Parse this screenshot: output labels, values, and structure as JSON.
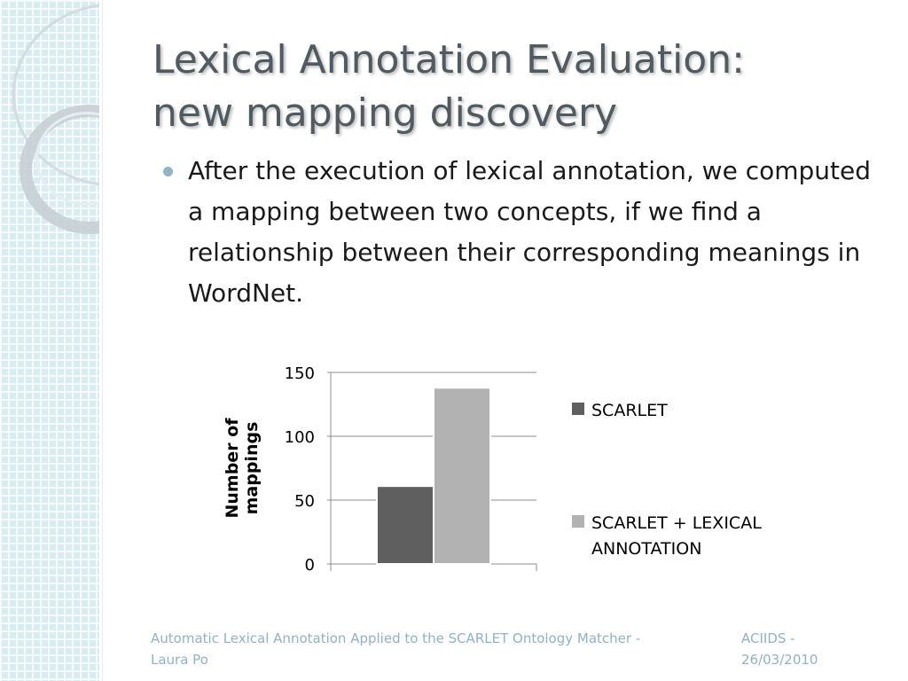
{
  "slide": {
    "title_line1": "Lexical Annotation Evaluation:",
    "title_line2": "new mapping discovery",
    "bullet": "After the execution of lexical annotation, we computed a mapping between two concepts, if we find a relationship between their corresponding meanings in WordNet."
  },
  "chart_data": {
    "type": "bar",
    "categories": [
      ""
    ],
    "series": [
      {
        "name": "SCARLET",
        "values": [
          61
        ],
        "color": "#5f5f5f"
      },
      {
        "name": "SCARLET + LEXICAL ANNOTATION",
        "values": [
          138
        ],
        "color": "#b2b2b2"
      }
    ],
    "ylabel_line1": "Number of",
    "ylabel_line2": "mappings",
    "ylim": [
      0,
      150
    ],
    "yticks": [
      0,
      50,
      100,
      150
    ],
    "grid": true,
    "legend_position": "right",
    "legend_labels": [
      "SCARLET",
      "SCARLET + LEXICAL",
      "ANNOTATION"
    ]
  },
  "footer": {
    "left_line1": "Automatic Lexical Annotation Applied to the SCARLET Ontology Matcher -",
    "left_line2": "Laura Po",
    "right_line1": "ACIIDS -",
    "right_line2": "26/03/2010"
  },
  "colors": {
    "title": "#4f5a61",
    "footer": "#8fb3c2",
    "bullet": "#8fb6c6",
    "strip": "#d9ecf2"
  }
}
